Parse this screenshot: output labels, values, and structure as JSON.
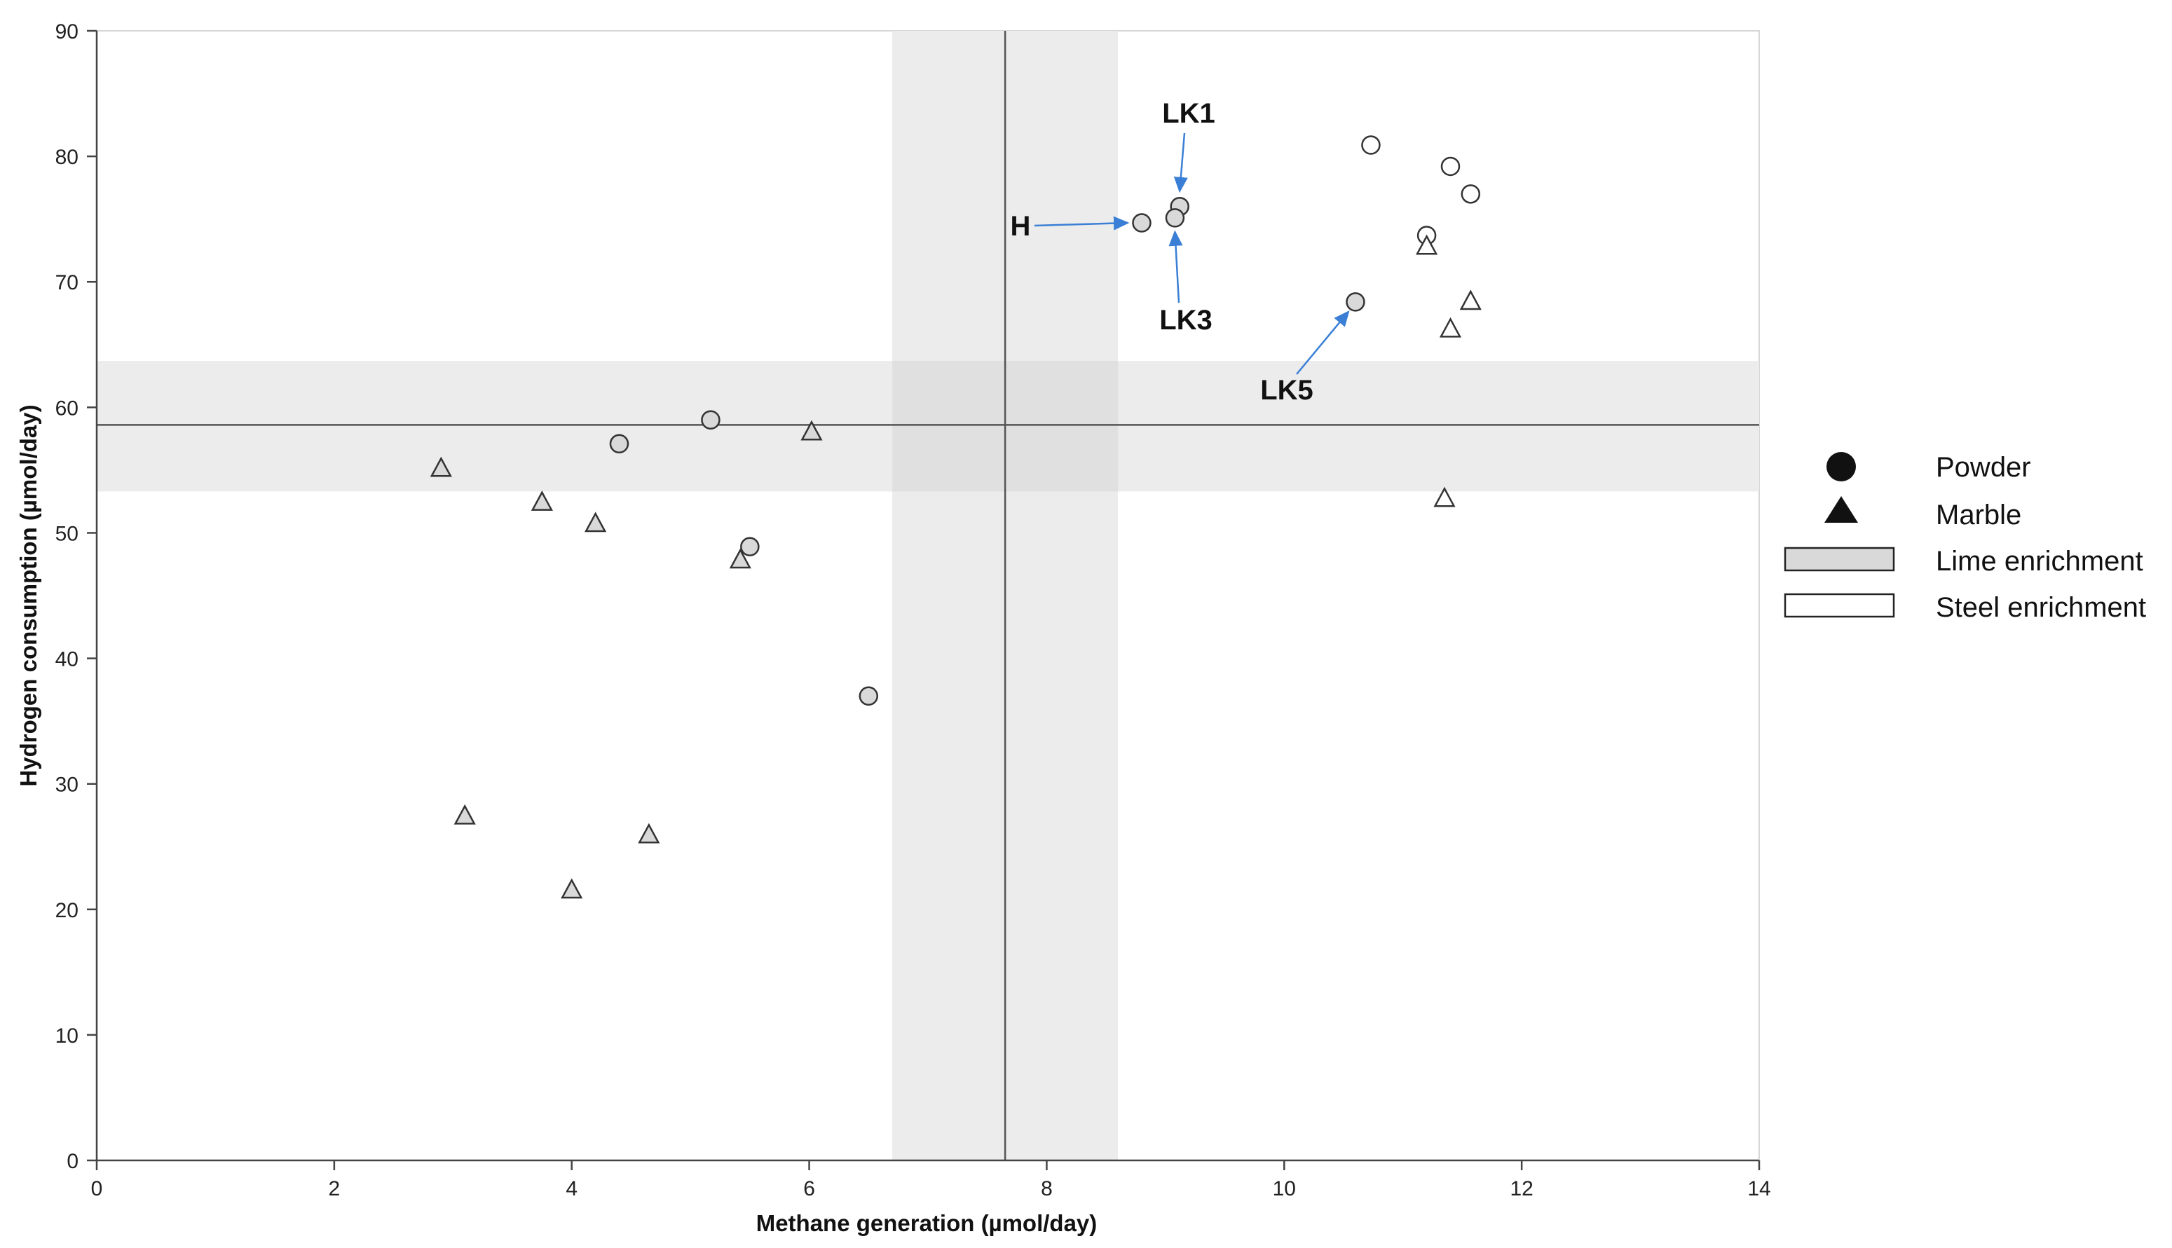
{
  "chart_data": {
    "type": "scatter",
    "title": "",
    "xlabel": "Methane generation (µmol/day)",
    "ylabel": "Hydrogen consumption (µmol/day)",
    "xlim": [
      0,
      14
    ],
    "ylim": [
      0,
      90
    ],
    "xticks": [
      0,
      2,
      4,
      6,
      8,
      10,
      12,
      14
    ],
    "yticks": [
      0,
      10,
      20,
      30,
      40,
      50,
      60,
      70,
      80,
      90
    ],
    "grid": false,
    "reference_lines": {
      "x": 7.65,
      "y": 58.6
    },
    "shaded_bands": {
      "x": [
        6.7,
        8.6
      ],
      "y": [
        53.3,
        63.7
      ],
      "plot_background_x_end": 14
    },
    "series": [
      {
        "name": "Powder",
        "marker": "circle",
        "fill": "#d9d9d9",
        "points": [
          {
            "x": 4.4,
            "y": 57.1
          },
          {
            "x": 5.17,
            "y": 59.0
          },
          {
            "x": 5.5,
            "y": 48.9
          },
          {
            "x": 6.5,
            "y": 37.0
          },
          {
            "x": 8.8,
            "y": 74.7,
            "label": "H"
          },
          {
            "x": 9.12,
            "y": 76.0,
            "label": "LK1"
          },
          {
            "x": 9.08,
            "y": 75.1,
            "label": "LK3"
          },
          {
            "x": 10.6,
            "y": 68.4,
            "label": "LK5"
          }
        ]
      },
      {
        "name": "Powder",
        "marker": "circle",
        "fill": "#ffffff",
        "points": [
          {
            "x": 10.73,
            "y": 80.9
          },
          {
            "x": 11.4,
            "y": 79.2
          },
          {
            "x": 11.57,
            "y": 77.0
          },
          {
            "x": 11.2,
            "y": 73.7
          }
        ]
      },
      {
        "name": "Marble",
        "marker": "triangle",
        "fill": "#d9d9d9",
        "points": [
          {
            "x": 2.9,
            "y": 55.1
          },
          {
            "x": 3.75,
            "y": 52.4
          },
          {
            "x": 4.2,
            "y": 50.7
          },
          {
            "x": 6.02,
            "y": 58.0
          },
          {
            "x": 5.42,
            "y": 47.8
          },
          {
            "x": 3.1,
            "y": 27.4
          },
          {
            "x": 4.65,
            "y": 25.9
          },
          {
            "x": 4.0,
            "y": 21.5
          }
        ]
      },
      {
        "name": "Marble",
        "marker": "triangle",
        "fill": "#ffffff",
        "points": [
          {
            "x": 11.2,
            "y": 72.8
          },
          {
            "x": 11.57,
            "y": 68.4
          },
          {
            "x": 11.4,
            "y": 66.2
          },
          {
            "x": 11.35,
            "y": 52.7
          }
        ]
      }
    ],
    "annotations": [
      {
        "text": "H",
        "target": {
          "x": 8.8,
          "y": 74.7
        }
      },
      {
        "text": "LK1",
        "target": {
          "x": 9.12,
          "y": 76.0
        }
      },
      {
        "text": "LK3",
        "target": {
          "x": 9.08,
          "y": 75.1
        }
      },
      {
        "text": "LK5",
        "target": {
          "x": 10.6,
          "y": 68.4
        }
      }
    ],
    "legend": {
      "placement": "right",
      "entries": [
        {
          "label": "Powder",
          "symbol": "circle",
          "fill": "#111111"
        },
        {
          "label": "Marble",
          "symbol": "triangle",
          "fill": "#111111"
        },
        {
          "label": "Lime enrichment",
          "symbol": "rect",
          "fill": "#d9d9d9"
        },
        {
          "label": "Steel enrichment",
          "symbol": "rect",
          "fill": "#ffffff"
        }
      ]
    }
  },
  "colors": {
    "band_fill": "#ececec",
    "band_overlap": "#e0e0e0",
    "lime_fill": "#d9d9d9",
    "steel_fill": "#ffffff",
    "arrow": "#3a7fd5",
    "axis": "#444444",
    "reference_line": "#555555",
    "marker_stroke": "#333333"
  }
}
